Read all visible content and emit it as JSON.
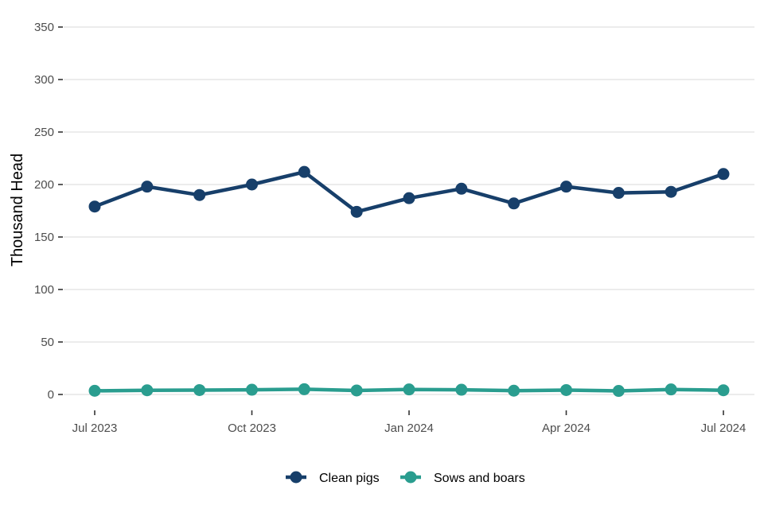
{
  "chart_data": {
    "type": "line",
    "title": "",
    "xlabel": "",
    "ylabel": "Thousand Head",
    "x": [
      "2023-07",
      "2023-08",
      "2023-09",
      "2023-10",
      "2023-11",
      "2023-12",
      "2024-01",
      "2024-02",
      "2024-03",
      "2024-04",
      "2024-05",
      "2024-06",
      "2024-07"
    ],
    "x_ticks": [
      {
        "label": "Jul 2023",
        "index": 0
      },
      {
        "label": "Oct 2023",
        "index": 3
      },
      {
        "label": "Jan 2024",
        "index": 6
      },
      {
        "label": "Apr 2024",
        "index": 9
      },
      {
        "label": "Jul 2024",
        "index": 12
      }
    ],
    "y_ticks": [
      0,
      50,
      100,
      150,
      200,
      250,
      300,
      350
    ],
    "ylim": [
      0,
      350
    ],
    "grid": true,
    "legend_position": "bottom",
    "series": [
      {
        "name": "Clean pigs",
        "color": "#173f6a",
        "values": [
          179,
          198,
          190,
          200,
          212,
          174,
          187,
          196,
          182,
          198,
          192,
          193,
          210
        ]
      },
      {
        "name": "Sows and boars",
        "color": "#2a9d8f",
        "values": [
          3.5,
          4,
          4.2,
          4.5,
          5,
          3.8,
          4.8,
          4.5,
          3.6,
          4.2,
          3.4,
          4.8,
          4
        ]
      }
    ]
  }
}
